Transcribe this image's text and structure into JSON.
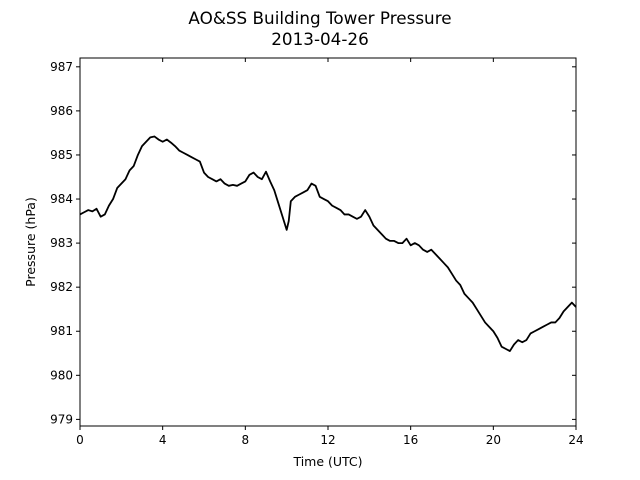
{
  "chart_data": {
    "type": "line",
    "title": "AO&SS Building Tower Pressure",
    "subtitle": "2013-04-26",
    "xlabel": "Time (UTC)",
    "ylabel": "Pressure (hPa)",
    "xlim": [
      0,
      24
    ],
    "ylim": [
      978.85,
      987.2
    ],
    "xticks": [
      0,
      4,
      8,
      12,
      16,
      20,
      24
    ],
    "xtick_labels": [
      "0",
      "4",
      "8",
      "12",
      "16",
      "20",
      "24"
    ],
    "yticks": [
      979,
      980,
      981,
      982,
      983,
      984,
      985,
      986,
      987
    ],
    "ytick_labels": [
      "979",
      "980",
      "981",
      "982",
      "983",
      "984",
      "985",
      "986",
      "987"
    ],
    "grid": false,
    "legend": "none",
    "line_color": "#000000",
    "series": [
      {
        "x": [
          0,
          0.2,
          0.4,
          0.6,
          0.8,
          1.0,
          1.2,
          1.4,
          1.6,
          1.8,
          2.0,
          2.2,
          2.4,
          2.6,
          2.8,
          3.0,
          3.2,
          3.4,
          3.6,
          3.8,
          4.0,
          4.2,
          4.4,
          4.6,
          4.8,
          5.0,
          5.2,
          5.4,
          5.6,
          5.8,
          6.0,
          6.2,
          6.4,
          6.6,
          6.8,
          7.0,
          7.2,
          7.4,
          7.6,
          7.8,
          8.0,
          8.2,
          8.4,
          8.6,
          8.8,
          9.0,
          9.2,
          9.4,
          9.6,
          9.8,
          10.0,
          10.1,
          10.2,
          10.4,
          10.6,
          10.8,
          11.0,
          11.2,
          11.4,
          11.6,
          11.8,
          12.0,
          12.2,
          12.4,
          12.6,
          12.8,
          13.0,
          13.2,
          13.4,
          13.6,
          13.8,
          14.0,
          14.2,
          14.4,
          14.6,
          14.8,
          15.0,
          15.2,
          15.4,
          15.6,
          15.8,
          16.0,
          16.2,
          16.4,
          16.6,
          16.8,
          17.0,
          17.2,
          17.4,
          17.6,
          17.8,
          18.0,
          18.2,
          18.4,
          18.6,
          18.8,
          19.0,
          19.2,
          19.4,
          19.6,
          19.8,
          20.0,
          20.2,
          20.4,
          20.6,
          20.8,
          21.0,
          21.2,
          21.4,
          21.6,
          21.8,
          22.0,
          22.2,
          22.4,
          22.6,
          22.8,
          23.0,
          23.2,
          23.4,
          23.6,
          23.8,
          24.0
        ],
        "y": [
          983.65,
          983.7,
          983.75,
          983.72,
          983.78,
          983.6,
          983.65,
          983.85,
          984.0,
          984.25,
          984.35,
          984.45,
          984.65,
          984.75,
          985.0,
          985.2,
          985.3,
          985.4,
          985.42,
          985.35,
          985.3,
          985.35,
          985.28,
          985.2,
          985.1,
          985.05,
          985.0,
          984.95,
          984.9,
          984.85,
          984.6,
          984.5,
          984.45,
          984.4,
          984.45,
          984.35,
          984.3,
          984.32,
          984.3,
          984.35,
          984.4,
          984.55,
          984.6,
          984.5,
          984.45,
          984.62,
          984.4,
          984.2,
          983.9,
          983.6,
          983.3,
          983.5,
          983.95,
          984.05,
          984.1,
          984.15,
          984.2,
          984.35,
          984.3,
          984.05,
          984.0,
          983.95,
          983.85,
          983.8,
          983.75,
          983.65,
          983.65,
          983.6,
          983.55,
          983.6,
          983.75,
          983.6,
          983.4,
          983.3,
          983.2,
          983.1,
          983.05,
          983.05,
          983.0,
          983.0,
          983.1,
          982.95,
          983.0,
          982.95,
          982.85,
          982.8,
          982.85,
          982.75,
          982.65,
          982.55,
          982.45,
          982.3,
          982.15,
          982.05,
          981.85,
          981.75,
          981.65,
          981.5,
          981.35,
          981.2,
          981.1,
          981.0,
          980.85,
          980.65,
          980.6,
          980.55,
          980.7,
          980.8,
          980.75,
          980.8,
          980.95,
          981.0,
          981.05,
          981.1,
          981.15,
          981.2,
          981.2,
          981.3,
          981.45,
          981.55,
          981.65,
          981.55
        ]
      }
    ]
  }
}
